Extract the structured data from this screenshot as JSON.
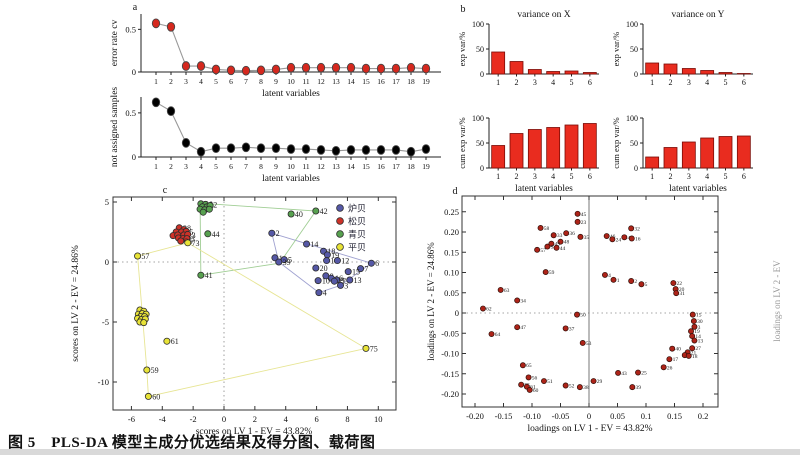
{
  "figure": {
    "caption": "图 5　PLS-DA 模型主成分优选结果及得分图、载荷图",
    "panel_labels": {
      "a": "a",
      "b": "b",
      "c": "c",
      "d": "d"
    },
    "right_edge_label": "loadings on LV 2 - EV"
  },
  "chart_data": {
    "a1": {
      "type": "line",
      "marker_color": "#d5281e",
      "ylabel": "error rate cv",
      "xlabel": "latent variables",
      "x": [
        1,
        2,
        3,
        4,
        5,
        6,
        7,
        8,
        9,
        10,
        11,
        12,
        13,
        14,
        15,
        16,
        17,
        18,
        19
      ],
      "values": [
        0.57,
        0.53,
        0.07,
        0.07,
        0.03,
        0.02,
        0.015,
        0.02,
        0.03,
        0.05,
        0.05,
        0.05,
        0.05,
        0.05,
        0.04,
        0.04,
        0.04,
        0.05,
        0.04
      ],
      "yticks": [
        0,
        0.5
      ],
      "ymax": 0.68
    },
    "a2": {
      "type": "line",
      "marker_color": "#000000",
      "ylabel": "not assigned samples",
      "xlabel": "latent variables",
      "x": [
        1,
        2,
        3,
        4,
        5,
        6,
        7,
        8,
        9,
        10,
        11,
        12,
        13,
        14,
        15,
        16,
        17,
        18,
        19
      ],
      "values": [
        0.62,
        0.52,
        0.16,
        0.06,
        0.1,
        0.1,
        0.11,
        0.1,
        0.1,
        0.09,
        0.09,
        0.08,
        0.07,
        0.08,
        0.08,
        0.08,
        0.08,
        0.06,
        0.09
      ],
      "yticks": [
        0,
        0.5
      ],
      "ymax": 0.68
    },
    "b": {
      "type": "bar",
      "bar_color": "#e92c1f",
      "categories": [
        1,
        2,
        3,
        4,
        5,
        6
      ],
      "yticks": [
        0,
        50,
        100
      ],
      "ymax": 100,
      "charts": [
        {
          "title": "variance on X",
          "ylabel": "exp var/%",
          "xlabel": "",
          "values": [
            44,
            25,
            9,
            5,
            6,
            3
          ]
        },
        {
          "title": "variance on Y",
          "ylabel": "exp var/%",
          "xlabel": "",
          "values": [
            22,
            20,
            11,
            7,
            3,
            1
          ]
        },
        {
          "title": "",
          "ylabel": "cum exp var/%",
          "xlabel": "latent variables",
          "values": [
            45,
            69,
            77,
            81,
            86,
            89
          ]
        },
        {
          "title": "",
          "ylabel": "cum exp var/%",
          "xlabel": "latent variables",
          "values": [
            22,
            41,
            52,
            60,
            63,
            64
          ]
        }
      ]
    },
    "c": {
      "type": "scatter",
      "xlabel": "scores on LV 1 - EV = 43.82%",
      "ylabel": "scores on LV 2 - EV = 24.86%",
      "xticks": [
        -6,
        -4,
        -2,
        0,
        2,
        4,
        6,
        8,
        10
      ],
      "yticks": [
        5,
        0,
        -5,
        -10
      ],
      "series": [
        {
          "name": "炉贝",
          "color": "#5558a6",
          "hull_color": "#9a9ccd",
          "points": [
            [
              3.1,
              2.4,
              "2"
            ],
            [
              5.35,
              1.5,
              "14"
            ],
            [
              6.45,
              0.9,
              "18"
            ],
            [
              6.7,
              0.6,
              "19"
            ],
            [
              3.3,
              0.35,
              "1"
            ],
            [
              3.9,
              0.2,
              "5"
            ],
            [
              3.55,
              0.0,
              "39"
            ],
            [
              6.65,
              0.12,
              "11"
            ],
            [
              7.35,
              0.12,
              "12"
            ],
            [
              9.55,
              -0.1,
              "6"
            ],
            [
              5.95,
              -0.5,
              "20"
            ],
            [
              8.85,
              -0.55,
              "7"
            ],
            [
              8.05,
              -0.8,
              "15"
            ],
            [
              6.6,
              -1.15,
              "8"
            ],
            [
              6.95,
              -1.35,
              "16"
            ],
            [
              7.3,
              -1.5,
              "9"
            ],
            [
              7.15,
              -1.6,
              "17"
            ],
            [
              6.1,
              -1.55,
              "10"
            ],
            [
              8.15,
              -1.5,
              "13"
            ],
            [
              7.55,
              -1.95,
              "3"
            ],
            [
              6.15,
              -2.55,
              "4"
            ]
          ],
          "hull": [
            [
              3.1,
              2.4
            ],
            [
              9.55,
              -0.1
            ],
            [
              7.55,
              -1.95
            ],
            [
              6.15,
              -2.55
            ],
            [
              3.55,
              0.0
            ]
          ]
        },
        {
          "name": "松贝",
          "color": "#cd3229",
          "hull_color": "#e0957a",
          "points": [
            [
              -2.9,
              2.85,
              "28"
            ],
            [
              -2.6,
              2.7,
              ""
            ],
            [
              -3.1,
              2.5,
              "33"
            ],
            [
              -2.75,
              2.5,
              "35"
            ],
            [
              -2.45,
              2.55,
              ""
            ],
            [
              -3.3,
              2.2,
              ""
            ],
            [
              -3.0,
              2.25,
              ""
            ],
            [
              -2.6,
              2.25,
              "23"
            ],
            [
              -2.35,
              2.3,
              ""
            ],
            [
              -2.95,
              2.0,
              ""
            ],
            [
              -2.65,
              1.95,
              "53"
            ],
            [
              -2.4,
              1.95,
              ""
            ],
            [
              -2.8,
              1.75,
              "25"
            ]
          ],
          "hull": [
            [
              -2.9,
              2.9
            ],
            [
              -2.45,
              2.65
            ],
            [
              -2.25,
              2.0
            ],
            [
              -2.3,
              1.65
            ],
            [
              -2.75,
              1.75
            ],
            [
              -3.35,
              2.2
            ],
            [
              -3.15,
              2.6
            ]
          ]
        },
        {
          "name": "青贝",
          "color": "#57a14f",
          "hull_color": "#9ccb8f",
          "points": [
            [
              -1.5,
              4.85,
              "56"
            ],
            [
              -1.2,
              4.8,
              "52"
            ],
            [
              -1.4,
              4.6,
              ""
            ],
            [
              -1.1,
              4.6,
              ""
            ],
            [
              -0.9,
              4.7,
              ""
            ],
            [
              -1.55,
              4.4,
              ""
            ],
            [
              -1.25,
              4.35,
              ""
            ],
            [
              -0.95,
              4.4,
              ""
            ],
            [
              -1.35,
              4.15,
              ""
            ],
            [
              -1.05,
              2.35,
              "44"
            ],
            [
              -1.5,
              -1.1,
              "41"
            ],
            [
              4.35,
              4.0,
              "40"
            ],
            [
              5.95,
              4.25,
              "42"
            ]
          ],
          "hull": [
            [
              -1.55,
              4.9
            ],
            [
              5.95,
              4.25
            ],
            [
              3.6,
              -0.1
            ],
            [
              -1.5,
              -1.1
            ]
          ]
        },
        {
          "name": "平贝",
          "color": "#e8e337",
          "hull_color": "#e6e48e",
          "points": [
            [
              -5.45,
              -4.0,
              ""
            ],
            [
              -5.2,
              -4.1,
              ""
            ],
            [
              -5.55,
              -4.35,
              ""
            ],
            [
              -5.3,
              -4.3,
              ""
            ],
            [
              -5.05,
              -4.35,
              ""
            ],
            [
              -5.4,
              -4.55,
              ""
            ],
            [
              -5.15,
              -4.55,
              ""
            ],
            [
              -5.6,
              -4.7,
              ""
            ],
            [
              -5.35,
              -4.8,
              ""
            ],
            [
              -5.1,
              -4.75,
              ""
            ],
            [
              -5.45,
              -5.0,
              ""
            ],
            [
              -5.2,
              -5.05,
              ""
            ],
            [
              -5.6,
              0.5,
              "57"
            ],
            [
              -2.35,
              1.6,
              "73"
            ],
            [
              -3.7,
              -6.6,
              "61"
            ],
            [
              -5.0,
              -9.0,
              "59"
            ],
            [
              -4.9,
              -11.2,
              "60"
            ],
            [
              9.2,
              -7.2,
              "75"
            ]
          ],
          "hull": [
            [
              -5.6,
              0.5
            ],
            [
              -2.35,
              1.6
            ],
            [
              9.2,
              -7.2
            ],
            [
              -4.9,
              -11.2
            ],
            [
              -5.0,
              -9.0
            ]
          ]
        }
      ]
    },
    "d": {
      "type": "scatter",
      "color": "#ad2318",
      "xlabel": "loadings on LV 1 - EV = 43.82%",
      "ylabel": "loadings on LV 2 - EV = 24.86%",
      "xticks": [
        "-0.20",
        "-0.15",
        "-0.10",
        "-0.05",
        "0",
        "0.05",
        "0.1",
        "0.15",
        "0.2"
      ],
      "yticks": [
        "0.25",
        "0.20",
        "0.15",
        "0.10",
        "0.05",
        "0",
        "-0.05",
        "-0.10",
        "-0.15",
        "-0.20"
      ],
      "points": [
        [
          -0.02,
          0.245,
          "45"
        ],
        [
          -0.02,
          0.225,
          "23"
        ],
        [
          -0.085,
          0.21,
          "58"
        ],
        [
          -0.04,
          0.197,
          "36"
        ],
        [
          -0.062,
          0.192,
          "33"
        ],
        [
          -0.015,
          0.188,
          "35"
        ],
        [
          -0.05,
          0.176,
          "48"
        ],
        [
          -0.066,
          0.171,
          "49"
        ],
        [
          -0.073,
          0.164,
          "54"
        ],
        [
          -0.057,
          0.161,
          "44"
        ],
        [
          -0.091,
          0.156,
          "57"
        ],
        [
          -0.076,
          0.101,
          "59"
        ],
        [
          -0.155,
          0.057,
          "63"
        ],
        [
          -0.126,
          0.031,
          "34"
        ],
        [
          -0.186,
          0.011,
          "62"
        ],
        [
          -0.021,
          -0.004,
          "50"
        ],
        [
          -0.126,
          -0.035,
          "47"
        ],
        [
          -0.041,
          -0.038,
          "37"
        ],
        [
          -0.171,
          -0.052,
          "64"
        ],
        [
          -0.011,
          -0.074,
          "53"
        ],
        [
          -0.116,
          -0.129,
          "65"
        ],
        [
          -0.106,
          -0.159,
          "56"
        ],
        [
          -0.079,
          -0.168,
          "51"
        ],
        [
          -0.119,
          -0.177,
          "55"
        ],
        [
          -0.109,
          -0.182,
          "61"
        ],
        [
          -0.104,
          -0.19,
          "60"
        ],
        [
          -0.041,
          -0.179,
          "52"
        ],
        [
          -0.016,
          -0.183,
          "38"
        ],
        [
          0.008,
          -0.168,
          "29"
        ],
        [
          0.074,
          0.209,
          "32"
        ],
        [
          0.031,
          0.19,
          "46"
        ],
        [
          0.041,
          0.182,
          "24"
        ],
        [
          0.062,
          0.187,
          "42"
        ],
        [
          0.075,
          0.184,
          "16"
        ],
        [
          0.028,
          0.094,
          "4"
        ],
        [
          0.043,
          0.082,
          "1"
        ],
        [
          0.074,
          0.079,
          "2"
        ],
        [
          0.092,
          0.071,
          "5"
        ],
        [
          0.148,
          0.074,
          "22"
        ],
        [
          0.152,
          0.059,
          "20"
        ],
        [
          0.153,
          0.049,
          "31"
        ],
        [
          0.182,
          -0.004,
          "15"
        ],
        [
          0.184,
          -0.02,
          "30"
        ],
        [
          0.185,
          -0.034,
          "3"
        ],
        [
          0.179,
          -0.045,
          "19"
        ],
        [
          0.181,
          -0.057,
          "14"
        ],
        [
          0.185,
          -0.068,
          "13"
        ],
        [
          0.181,
          -0.087,
          "27"
        ],
        [
          0.146,
          -0.088,
          "40"
        ],
        [
          0.173,
          -0.097,
          "21"
        ],
        [
          0.168,
          -0.104,
          "9"
        ],
        [
          0.175,
          -0.106,
          "18"
        ],
        [
          0.141,
          -0.114,
          "17"
        ],
        [
          0.131,
          -0.134,
          "26"
        ],
        [
          0.086,
          -0.147,
          "25"
        ],
        [
          0.051,
          -0.148,
          "43"
        ],
        [
          0.076,
          -0.183,
          "39"
        ]
      ]
    }
  }
}
